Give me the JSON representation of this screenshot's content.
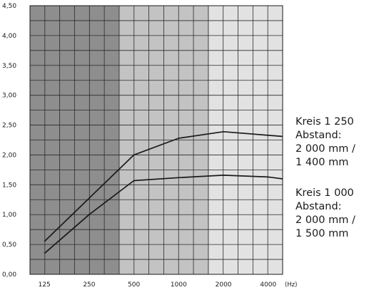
{
  "chart_data": {
    "type": "line",
    "x_unit": "(Hz)",
    "x_ticks": [
      {
        "value": 125,
        "label": "125"
      },
      {
        "value": 250,
        "label": "250"
      },
      {
        "value": 500,
        "label": "500"
      },
      {
        "value": 1000,
        "label": "1000"
      },
      {
        "value": 2000,
        "label": "2000"
      },
      {
        "value": 4000,
        "label": "4000"
      }
    ],
    "x_scale": "log",
    "xlim": [
      100,
      5000
    ],
    "ylim": [
      0,
      4.5
    ],
    "y_ticks": [
      "0,00",
      "0,50",
      "1,00",
      "1,50",
      "2,00",
      "2,50",
      "3,00",
      "3,50",
      "4,00",
      "4,50"
    ],
    "grid": true,
    "band_colors": [
      "#8e8e8e",
      "#c3c3c3",
      "#e2e2e2"
    ],
    "band_ranges": [
      [
        100,
        400
      ],
      [
        400,
        1600
      ],
      [
        1600,
        5000
      ]
    ],
    "line_color": "#1a1a1a",
    "series": [
      {
        "x": [
          125,
          500,
          1000,
          2000,
          5000
        ],
        "y": [
          0.55,
          2.0,
          2.28,
          2.39,
          2.31
        ]
      },
      {
        "x": [
          125,
          250,
          500,
          1000,
          2000,
          4000,
          5000
        ],
        "y": [
          0.35,
          1.0,
          1.57,
          1.62,
          1.66,
          1.63,
          1.6
        ]
      }
    ],
    "legend": [
      {
        "lines": [
          "Kreis 1 250",
          "Abstand:",
          "2 000 mm /",
          "1 400 mm"
        ]
      },
      {
        "lines": [
          "Kreis 1 000",
          "Abstand:",
          "2 000 mm /",
          "1 500 mm"
        ]
      }
    ]
  }
}
